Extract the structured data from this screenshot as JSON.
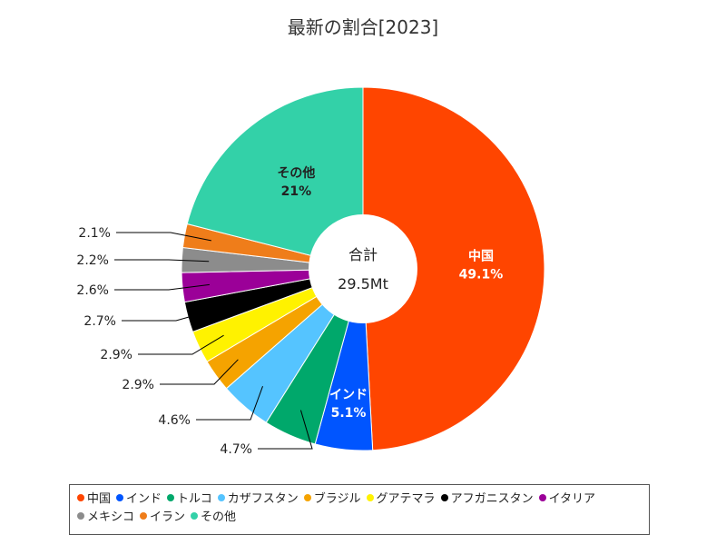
{
  "chart_data": {
    "type": "pie",
    "title": "最新の割合[2023]",
    "center_label": "合計",
    "center_value": "29.5Mt",
    "slices": [
      {
        "name": "中国",
        "value": 49.1,
        "label": "49.1%",
        "color": "#ff4500"
      },
      {
        "name": "インド",
        "value": 5.1,
        "label": "5.1%",
        "color": "#0055ff"
      },
      {
        "name": "トルコ",
        "value": 4.7,
        "label": "4.7%",
        "color": "#00a86b"
      },
      {
        "name": "カザフスタン",
        "value": 4.6,
        "label": "4.6%",
        "color": "#55c4ff"
      },
      {
        "name": "ブラジル",
        "value": 2.9,
        "label": "2.9%",
        "color": "#f5a300"
      },
      {
        "name": "グアテマラ",
        "value": 2.9,
        "label": "2.9%",
        "color": "#fff200"
      },
      {
        "name": "アフガニスタン",
        "value": 2.7,
        "label": "2.7%",
        "color": "#000000"
      },
      {
        "name": "イタリア",
        "value": 2.6,
        "label": "2.6%",
        "color": "#9b0098"
      },
      {
        "name": "メキシコ",
        "value": 2.2,
        "label": "2.2%",
        "color": "#8c8c8c"
      },
      {
        "name": "イラン",
        "value": 2.1,
        "label": "2.1%",
        "color": "#ef7d1a"
      },
      {
        "name": "その他",
        "value": 21,
        "label": "21%",
        "color": "#33d1a8"
      }
    ],
    "legend_position": "bottom"
  }
}
